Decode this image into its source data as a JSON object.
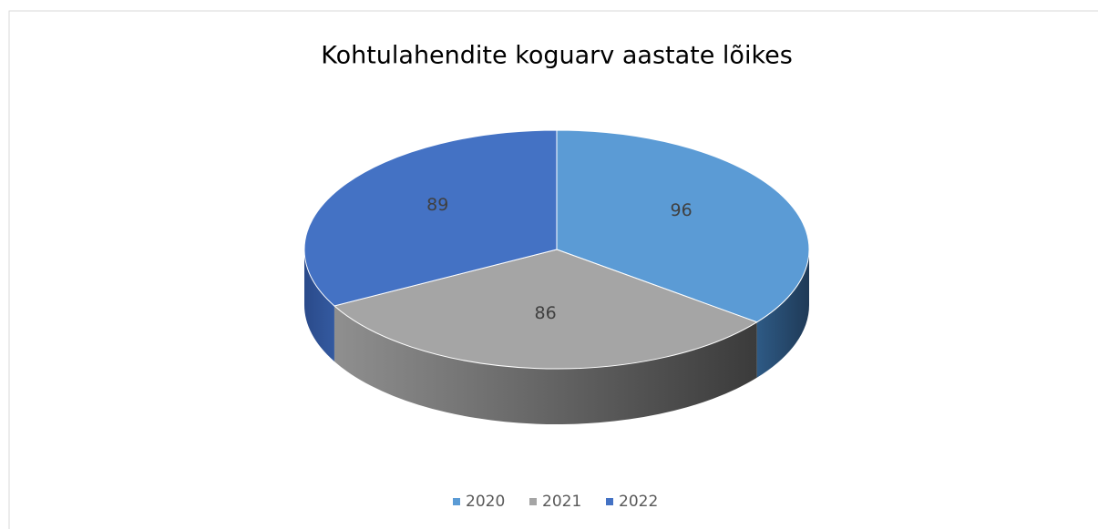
{
  "chart_data": {
    "type": "pie",
    "title": "Kohtulahendite koguarv aastate lõikes",
    "categories": [
      "2020",
      "2021",
      "2022"
    ],
    "values": [
      96,
      86,
      89
    ],
    "colors": [
      "#5b9bd5",
      "#a5a5a5",
      "#4472c4"
    ],
    "legend": "bottom"
  }
}
